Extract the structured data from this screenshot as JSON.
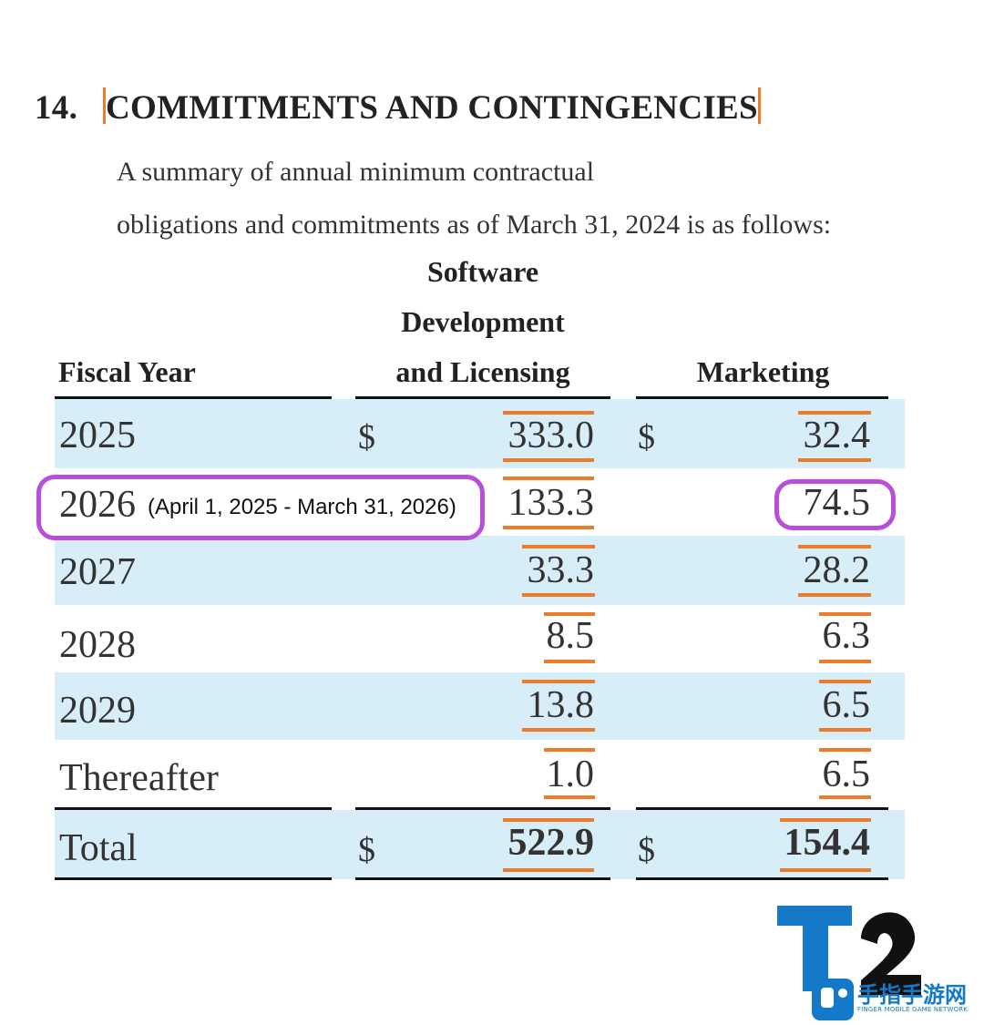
{
  "heading": {
    "number": "14.",
    "title": "COMMITMENTS AND CONTINGENCIES"
  },
  "intro": {
    "line1": "A summary of annual minimum contractual",
    "line2": "obligations and commitments as of March 31, 2024 is as follows:"
  },
  "columns": {
    "fiscal_year": "Fiscal Year",
    "software_line1": "Software",
    "software_line2": "Development",
    "software_line3": "and Licensing",
    "marketing": "Marketing"
  },
  "currency_symbol": "$",
  "rows": [
    {
      "year": "2025",
      "software": "333.0",
      "marketing": "32.4"
    },
    {
      "year": "2026",
      "software": "133.3",
      "marketing": "74.5"
    },
    {
      "year": "2027",
      "software": "33.3",
      "marketing": "28.2"
    },
    {
      "year": "2028",
      "software": "8.5",
      "marketing": "6.3"
    },
    {
      "year": "2029",
      "software": "13.8",
      "marketing": "6.5"
    },
    {
      "year": "Thereafter",
      "software": "1.0",
      "marketing": "6.5"
    }
  ],
  "total": {
    "label": "Total",
    "software": "522.9",
    "marketing": "154.4"
  },
  "annotation": "(April 1, 2025 - March 31, 2026)",
  "logo": {
    "mark": "T2",
    "name": "手指手游网",
    "subtitle": "FINGER MOBILE GAME NETWORK"
  },
  "colors": {
    "accent": "#ee7a2a",
    "highlight": "#b84fdb",
    "row_shade": "#d7eef9",
    "logo_blue": "#1479c9"
  }
}
